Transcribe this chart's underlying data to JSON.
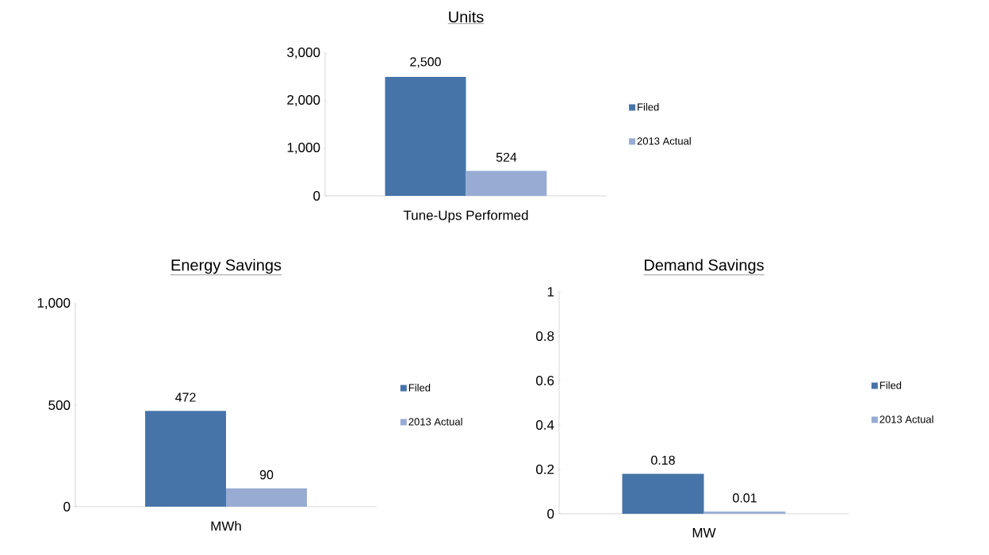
{
  "chart_data": [
    {
      "type": "bar",
      "title": "Units",
      "categories": [
        "Tune-Ups Performed"
      ],
      "series": [
        {
          "name": "Filed",
          "color": "#4674a8",
          "values": [
            2500
          ],
          "value_labels": [
            "2,500"
          ]
        },
        {
          "name": "2013 Actual",
          "color": "#97abd3",
          "values": [
            524
          ],
          "value_labels": [
            "524"
          ]
        }
      ],
      "ylim": [
        0,
        3000
      ],
      "yticks": [
        0,
        {
          "value": 1000,
          "label": "1,000"
        },
        {
          "value": 2000,
          "label": "2,000"
        },
        {
          "value": 3000,
          "label": "3,000"
        }
      ],
      "legend": "right",
      "grid": false
    },
    {
      "type": "bar",
      "title": "Energy Savings",
      "categories": [
        "MWh"
      ],
      "series": [
        {
          "name": "Filed",
          "color": "#4674a8",
          "values": [
            472
          ],
          "value_labels": [
            "472"
          ]
        },
        {
          "name": "2013 Actual",
          "color": "#97abd3",
          "values": [
            90
          ],
          "value_labels": [
            "90"
          ]
        }
      ],
      "ylim": [
        0,
        1000
      ],
      "yticks": [
        0,
        500,
        {
          "value": 1000,
          "label": "1,000"
        }
      ],
      "legend": "right",
      "grid": false
    },
    {
      "type": "bar",
      "title": "Demand Savings",
      "categories": [
        "MW"
      ],
      "series": [
        {
          "name": "Filed",
          "color": "#4674a8",
          "values": [
            0.18
          ],
          "value_labels": [
            "0.18"
          ]
        },
        {
          "name": "2013 Actual",
          "color": "#97abd3",
          "values": [
            0.01
          ],
          "value_labels": [
            "0.01"
          ]
        }
      ],
      "ylim": [
        0,
        1
      ],
      "yticks": [
        0,
        0.2,
        0.4,
        0.6,
        0.8,
        1
      ],
      "legend": "right",
      "grid": false
    }
  ]
}
